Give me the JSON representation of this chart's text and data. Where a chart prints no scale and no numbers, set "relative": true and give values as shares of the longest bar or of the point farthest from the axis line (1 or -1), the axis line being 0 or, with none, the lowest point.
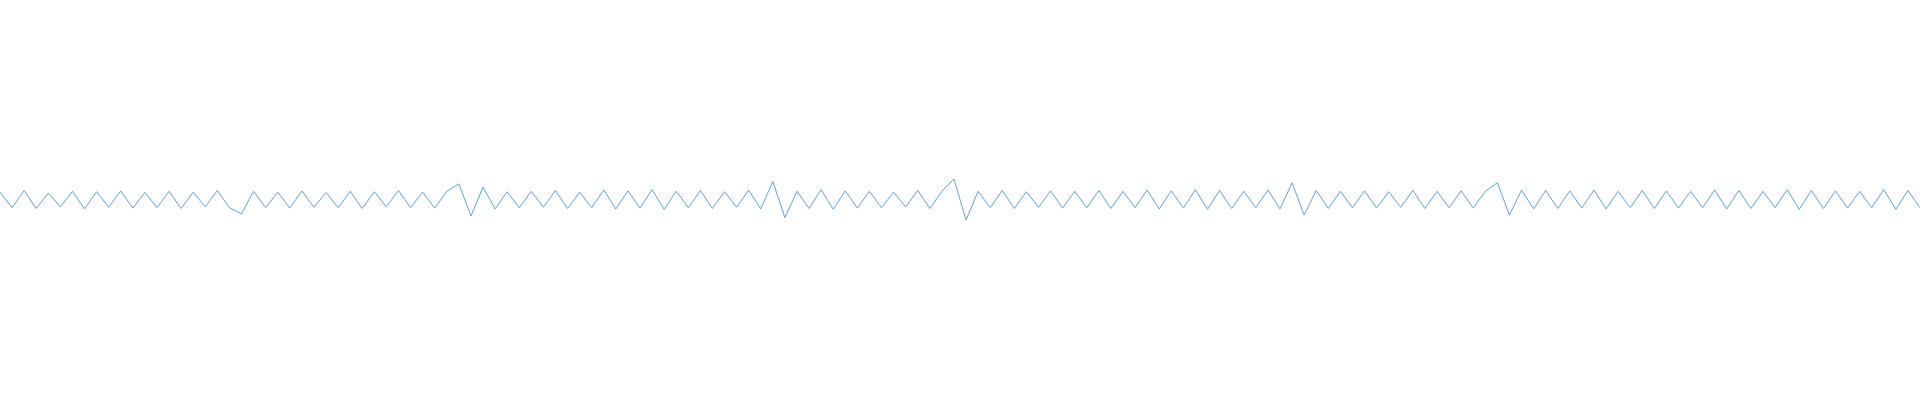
{
  "chart_data": {
    "type": "line",
    "relative": true,
    "color": "#5aa5e0",
    "categories": [
      null,
      null,
      null,
      null,
      null,
      null,
      null,
      null,
      null,
      null,
      null,
      null,
      null,
      null,
      null,
      null,
      null,
      null,
      null,
      null,
      null,
      null,
      null,
      null,
      null,
      null,
      null,
      null,
      null,
      null,
      null,
      null,
      null,
      null,
      null,
      null,
      null,
      null,
      null,
      null,
      null,
      null,
      null,
      null,
      null,
      null,
      null,
      null,
      null,
      null,
      null,
      null,
      null,
      null,
      null,
      null,
      null,
      null,
      null,
      null,
      null,
      null,
      null,
      null,
      null,
      null,
      null,
      null,
      null,
      null,
      null,
      null,
      null,
      null,
      null,
      null,
      null,
      null,
      null,
      null,
      null,
      null,
      null,
      null,
      null,
      null,
      null,
      null,
      null,
      null,
      null,
      null,
      null,
      null,
      null,
      null,
      null,
      null,
      null,
      null,
      null,
      null,
      null,
      null,
      null,
      null,
      null,
      null,
      null,
      null,
      null,
      null,
      null,
      null,
      null,
      null,
      null,
      null,
      null,
      null,
      null,
      null,
      null,
      null,
      null,
      null,
      null,
      null,
      null,
      null,
      null,
      null,
      null,
      null,
      null,
      null,
      null,
      null,
      null,
      null,
      null,
      null,
      null,
      null,
      null,
      null,
      null,
      null,
      null,
      null,
      null,
      null,
      null,
      null,
      null,
      null,
      null,
      null,
      null,
      null
    ],
    "values": [
      0.68,
      0.3,
      0.72,
      0.28,
      0.66,
      0.32,
      0.7,
      0.27,
      0.69,
      0.31,
      0.71,
      0.29,
      0.67,
      0.3,
      0.7,
      0.28,
      0.68,
      0.32,
      0.72,
      0.3,
      0.15,
      0.7,
      0.3,
      0.68,
      0.29,
      0.71,
      0.31,
      0.67,
      0.3,
      0.7,
      0.28,
      0.69,
      0.32,
      0.72,
      0.3,
      0.68,
      0.29,
      0.7,
      0.88,
      0.1,
      0.8,
      0.27,
      0.69,
      0.3,
      0.7,
      0.31,
      0.72,
      0.28,
      0.68,
      0.3,
      0.73,
      0.27,
      0.71,
      0.29,
      0.74,
      0.26,
      0.7,
      0.3,
      0.72,
      0.28,
      0.69,
      0.31,
      0.73,
      0.27,
      0.94,
      0.06,
      0.7,
      0.28,
      0.74,
      0.26,
      0.71,
      0.29,
      0.7,
      0.3,
      0.68,
      0.32,
      0.72,
      0.28,
      0.7,
      1,
      0,
      0.7,
      0.3,
      0.72,
      0.28,
      0.69,
      0.31,
      0.71,
      0.29,
      0.7,
      0.3,
      0.72,
      0.28,
      0.7,
      0.3,
      0.73,
      0.27,
      0.71,
      0.29,
      0.74,
      0.26,
      0.72,
      0.28,
      0.7,
      0.3,
      0.73,
      0.27,
      0.91,
      0.12,
      0.72,
      0.28,
      0.7,
      0.3,
      0.71,
      0.29,
      0.69,
      0.31,
      0.72,
      0.28,
      0.7,
      0.3,
      0.71,
      0.29,
      0.7,
      0.91,
      0.12,
      0.73,
      0.27,
      0.72,
      0.28,
      0.71,
      0.29,
      0.73,
      0.27,
      0.7,
      0.3,
      0.72,
      0.28,
      0.71,
      0.29,
      0.7,
      0.3,
      0.73,
      0.27,
      0.72,
      0.28,
      0.7,
      0.3,
      0.74,
      0.26,
      0.72,
      0.28,
      0.71,
      0.29,
      0.7,
      0.3,
      0.74,
      0.26,
      0.72,
      0.3
    ]
  }
}
